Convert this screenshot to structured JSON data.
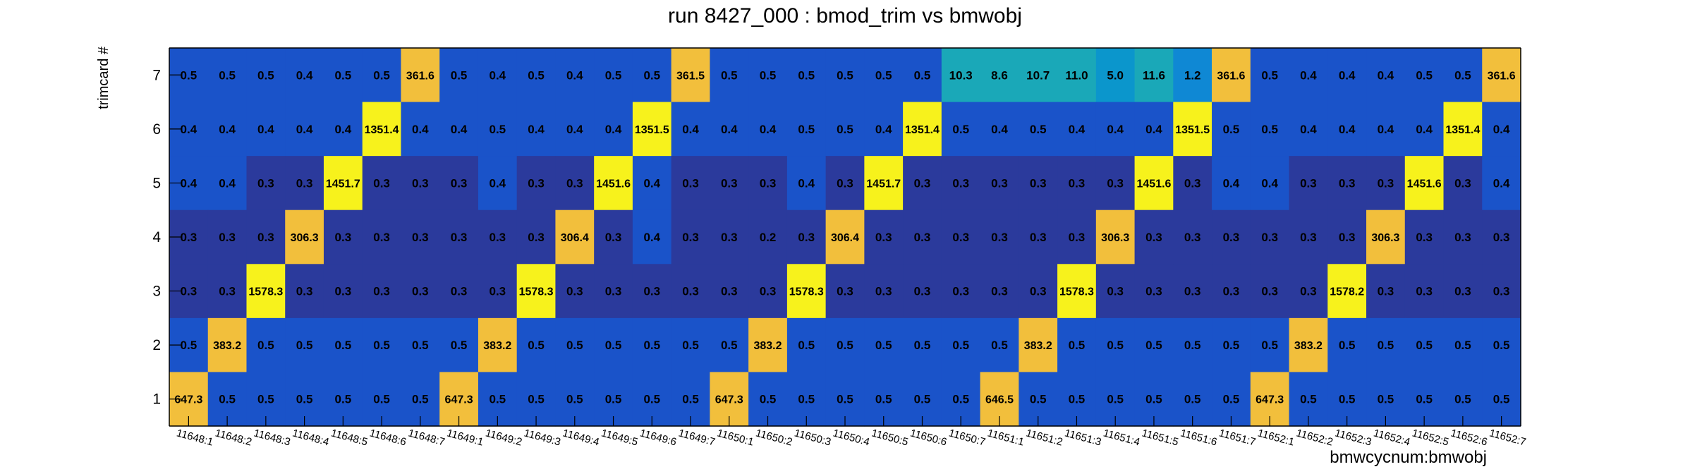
{
  "chart_data": {
    "type": "heatmap",
    "title": "run 8427_000 : bmod_trim vs bmwobj",
    "xlabel": "bmwcycnum:bmwobj",
    "ylabel": "trimcard #",
    "x_categories": [
      "11648:1",
      "11648:2",
      "11648:3",
      "11648:4",
      "11648:5",
      "11648:6",
      "11648:7",
      "11649:1",
      "11649:2",
      "11649:3",
      "11649:4",
      "11649:5",
      "11649:6",
      "11649:7",
      "11650:1",
      "11650:2",
      "11650:3",
      "11650:4",
      "11650:5",
      "11650:6",
      "11650:7",
      "11651:1",
      "11651:2",
      "11651:3",
      "11651:4",
      "11651:5",
      "11651:6",
      "11651:7",
      "11652:1",
      "11652:2",
      "11652:3",
      "11652:4",
      "11652:5",
      "11652:6",
      "11652:7"
    ],
    "y_categories": [
      "1",
      "2",
      "3",
      "4",
      "5",
      "6",
      "7"
    ],
    "rows": [
      {
        "y": "7",
        "labels": [
          "0.5",
          "0.5",
          "0.5",
          "0.4",
          "0.5",
          "0.5",
          "361.6",
          "0.5",
          "0.4",
          "0.5",
          "0.4",
          "0.5",
          "0.5",
          "361.5",
          "0.5",
          "0.5",
          "0.5",
          "0.5",
          "0.5",
          "0.5",
          "10.3",
          "8.6",
          "10.7",
          "11.0",
          "5.0",
          "11.6",
          "1.2",
          "361.6",
          "0.5",
          "0.4",
          "0.4",
          "0.4",
          "0.5",
          "0.5",
          "361.6"
        ]
      },
      {
        "y": "6",
        "labels": [
          "0.4",
          "0.4",
          "0.4",
          "0.4",
          "0.4",
          "1351.4",
          "0.4",
          "0.4",
          "0.5",
          "0.4",
          "0.4",
          "0.4",
          "1351.5",
          "0.4",
          "0.4",
          "0.4",
          "0.5",
          "0.5",
          "0.4",
          "1351.4",
          "0.5",
          "0.4",
          "0.5",
          "0.4",
          "0.4",
          "0.4",
          "1351.5",
          "0.5",
          "0.5",
          "0.4",
          "0.4",
          "0.4",
          "0.4",
          "1351.4",
          "0.4"
        ]
      },
      {
        "y": "5",
        "labels": [
          "0.4",
          "0.4",
          "0.3",
          "0.3",
          "1451.7",
          "0.3",
          "0.3",
          "0.3",
          "0.4",
          "0.3",
          "0.3",
          "1451.6",
          "0.4",
          "0.3",
          "0.3",
          "0.3",
          "0.4",
          "0.3",
          "1451.7",
          "0.3",
          "0.3",
          "0.3",
          "0.3",
          "0.3",
          "0.3",
          "1451.6",
          "0.3",
          "0.4",
          "0.4",
          "0.3",
          "0.3",
          "0.3",
          "1451.6",
          "0.3",
          "0.4"
        ]
      },
      {
        "y": "4",
        "labels": [
          "0.3",
          "0.3",
          "0.3",
          "306.3",
          "0.3",
          "0.3",
          "0.3",
          "0.3",
          "0.3",
          "0.3",
          "306.4",
          "0.3",
          "0.4",
          "0.3",
          "0.3",
          "0.2",
          "0.3",
          "306.4",
          "0.3",
          "0.3",
          "0.3",
          "0.3",
          "0.3",
          "0.3",
          "306.3",
          "0.3",
          "0.3",
          "0.3",
          "0.3",
          "0.3",
          "0.3",
          "306.3",
          "0.3",
          "0.3",
          "0.3"
        ]
      },
      {
        "y": "3",
        "labels": [
          "0.3",
          "0.3",
          "1578.3",
          "0.3",
          "0.3",
          "0.3",
          "0.3",
          "0.3",
          "0.3",
          "1578.3",
          "0.3",
          "0.3",
          "0.3",
          "0.3",
          "0.3",
          "0.3",
          "1578.3",
          "0.3",
          "0.3",
          "0.3",
          "0.3",
          "0.3",
          "0.3",
          "1578.3",
          "0.3",
          "0.3",
          "0.3",
          "0.3",
          "0.3",
          "0.3",
          "1578.2",
          "0.3",
          "0.3",
          "0.3",
          "0.3"
        ]
      },
      {
        "y": "2",
        "labels": [
          "0.5",
          "383.2",
          "0.5",
          "0.5",
          "0.5",
          "0.5",
          "0.5",
          "0.5",
          "383.2",
          "0.5",
          "0.5",
          "0.5",
          "0.5",
          "0.5",
          "0.5",
          "383.2",
          "0.5",
          "0.5",
          "0.5",
          "0.5",
          "0.5",
          "0.5",
          "383.2",
          "0.5",
          "0.5",
          "0.5",
          "0.5",
          "0.5",
          "0.5",
          "383.2",
          "0.5",
          "0.5",
          "0.5",
          "0.5",
          "0.5"
        ]
      },
      {
        "y": "1",
        "labels": [
          "647.3",
          "0.5",
          "0.5",
          "0.5",
          "0.5",
          "0.5",
          "0.5",
          "647.3",
          "0.5",
          "0.5",
          "0.5",
          "0.5",
          "0.5",
          "0.5",
          "647.3",
          "0.5",
          "0.5",
          "0.5",
          "0.5",
          "0.5",
          "0.5",
          "646.5",
          "0.5",
          "0.5",
          "0.5",
          "0.5",
          "0.5",
          "0.5",
          "647.3",
          "0.5",
          "0.5",
          "0.5",
          "0.5",
          "0.5",
          "0.5"
        ]
      }
    ],
    "color_scale": {
      "low_dark": "#2b3a9c",
      "low_mid": "#1a53c9",
      "low_high": "#1568d6",
      "mid_1": "#0f88d4",
      "mid_5": "#0b96cc",
      "mid_10": "#1aa8b8",
      "high_300": "#f2bf3c",
      "high_1300": "#f7f21c"
    },
    "grid": false,
    "legend": "none"
  }
}
